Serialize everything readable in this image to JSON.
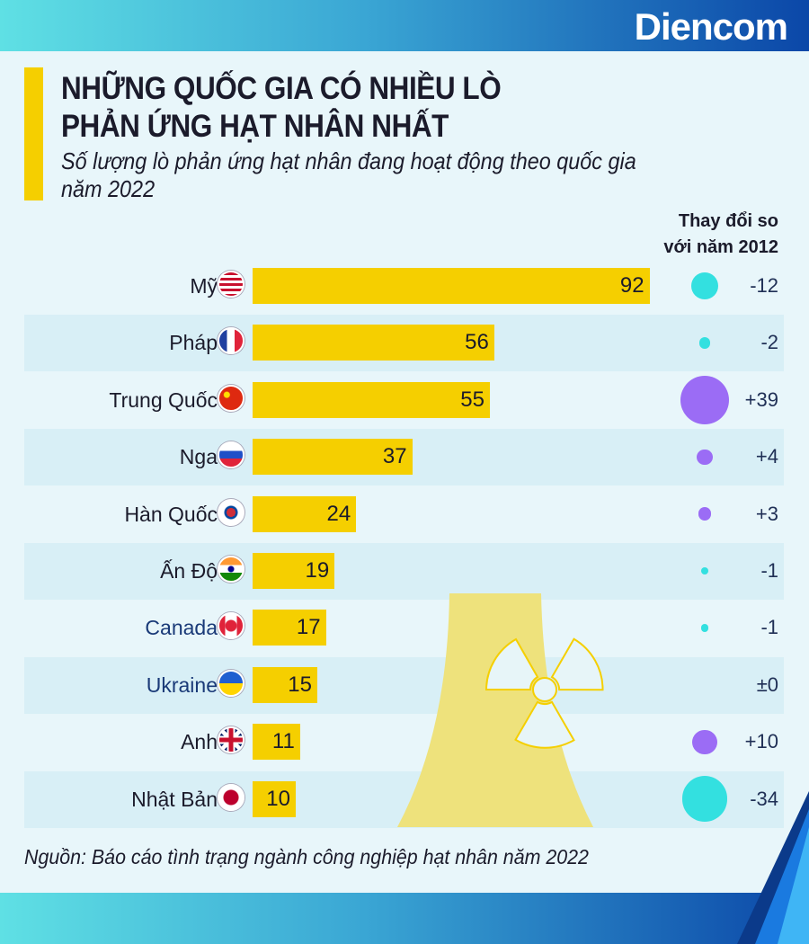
{
  "brand": "Diencom",
  "colors": {
    "bar": "#f5cf00",
    "increase": "#9b6cf5",
    "decrease": "#33e0e0"
  },
  "chart_data": {
    "type": "bar",
    "orientation": "horizontal",
    "title": "NHỮNG QUỐC GIA CÓ NHIỀU LÒ PHẢN ỨNG HẠT NHÂN NHẤT",
    "title_lines": [
      "NHỮNG QUỐC GIA CÓ NHIỀU LÒ",
      "PHẢN ỨNG HẠT NHÂN NHẤT"
    ],
    "subtitle_lines": [
      "Số lượng lò phản ứng hạt nhân đang hoạt động theo quốc gia",
      "năm 2022"
    ],
    "change_header_lines": [
      "Thay đổi so",
      "với năm 2012"
    ],
    "categories": [
      "Mỹ",
      "Pháp",
      "Trung Quốc",
      "Nga",
      "Hàn Quốc",
      "Ấn Độ",
      "Canada",
      "Ukraine",
      "Anh",
      "Nhật Bản"
    ],
    "flags": [
      "us",
      "fr",
      "cn",
      "ru",
      "kr",
      "in",
      "ca",
      "ua",
      "gb",
      "jp"
    ],
    "values": [
      92,
      56,
      55,
      37,
      24,
      19,
      17,
      15,
      11,
      10
    ],
    "change_values": [
      -12,
      -2,
      39,
      4,
      3,
      -1,
      -1,
      0,
      10,
      -34
    ],
    "change_labels": [
      "-12",
      "-2",
      "+39",
      "+4",
      "+3",
      "-1",
      "-1",
      "±0",
      "+10",
      "-34"
    ],
    "source": "Nguồn: Báo cáo tình trạng ngành công nghiệp hạt nhân năm 2022"
  }
}
